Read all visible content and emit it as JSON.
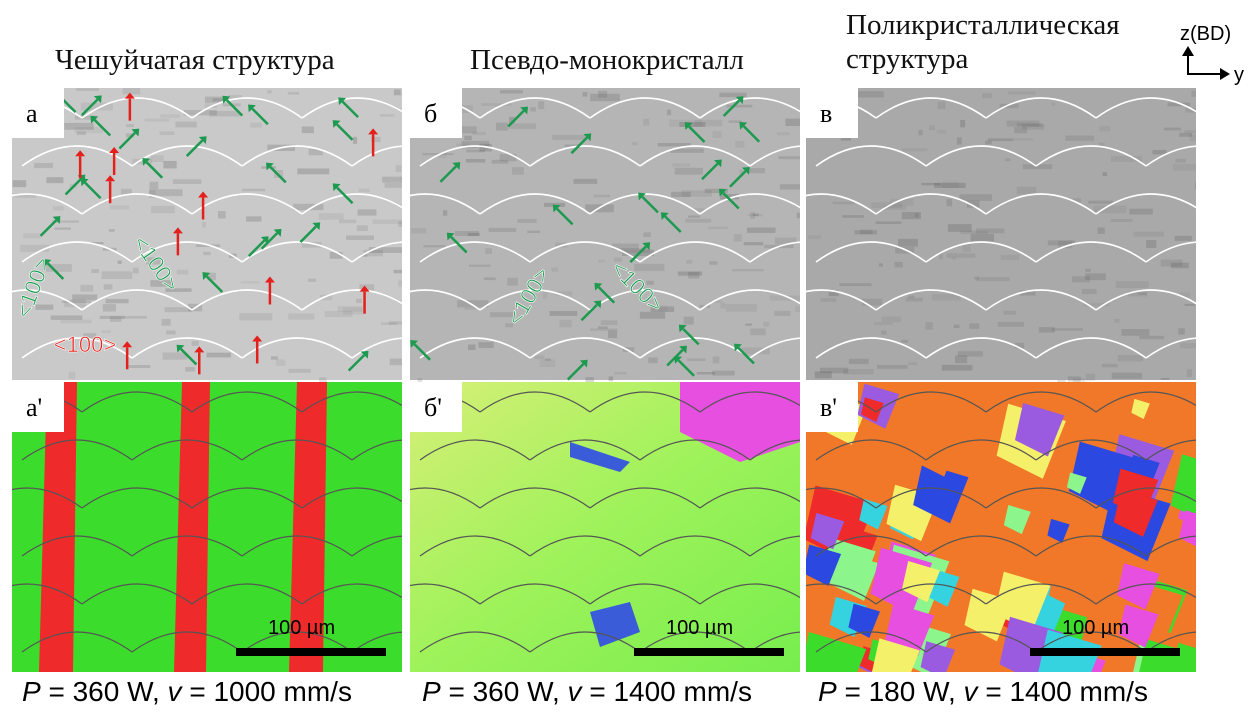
{
  "columns": [
    {
      "title_lines": [
        "Чешуйчатая структура"
      ],
      "top_label": "а",
      "bottom_label": "а'",
      "scale_bar": "100 µm",
      "caption": {
        "p": "P",
        "power": " = 360 W, ",
        "v": "v",
        "speed": " = 1000 mm/s"
      }
    },
    {
      "title_lines": [
        "Псевдо-монокристалл"
      ],
      "top_label": "б",
      "bottom_label": "б'",
      "scale_bar": "100 µm",
      "caption": {
        "p": "P",
        "power": " = 360 W, ",
        "v": "v",
        "speed": " = 1400 mm/s"
      }
    },
    {
      "title_lines": [
        "Поликристаллическая",
        "структура"
      ],
      "top_label": "в",
      "bottom_label": "в'",
      "scale_bar": "100 µm",
      "caption": {
        "p": "P",
        "power": " = 180 W, ",
        "v": "v",
        "speed": " = 1400 mm/s"
      }
    }
  ],
  "axes": {
    "z": "z(BD)",
    "y": "y"
  },
  "annotations": [
    "<100>",
    "<100>",
    "<100>",
    "<100>",
    "<100>"
  ]
}
